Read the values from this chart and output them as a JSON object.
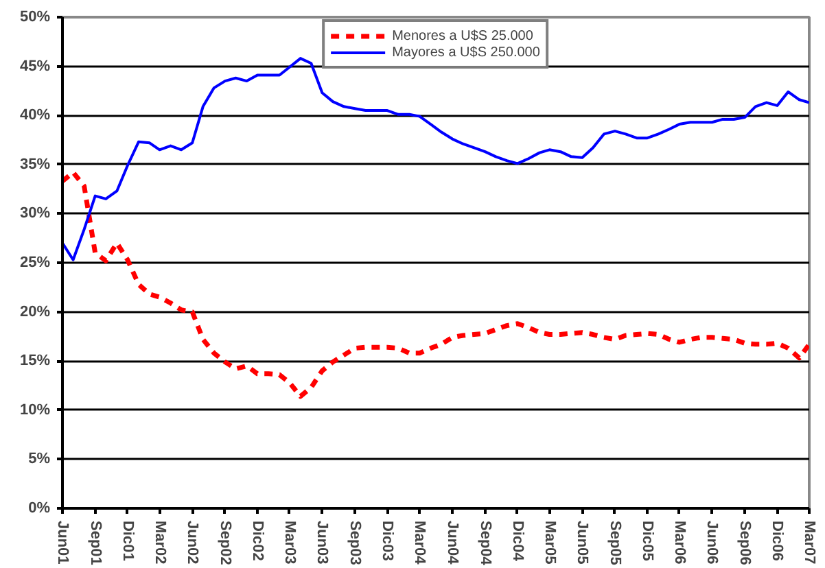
{
  "chart_data": {
    "type": "line",
    "x": [
      "2001-06",
      "2001-07",
      "2001-08",
      "2001-09",
      "2001-10",
      "2001-11",
      "2001-12",
      "2002-01",
      "2002-02",
      "2002-03",
      "2002-04",
      "2002-05",
      "2002-06",
      "2002-07",
      "2002-08",
      "2002-09",
      "2002-10",
      "2002-11",
      "2002-12",
      "2003-01",
      "2003-02",
      "2003-03",
      "2003-04",
      "2003-05",
      "2003-06",
      "2003-07",
      "2003-08",
      "2003-09",
      "2003-10",
      "2003-11",
      "2003-12",
      "2004-01",
      "2004-02",
      "2004-03",
      "2004-04",
      "2004-05",
      "2004-06",
      "2004-07",
      "2004-08",
      "2004-09",
      "2004-10",
      "2004-11",
      "2004-12",
      "2005-01",
      "2005-02",
      "2005-03",
      "2005-04",
      "2005-05",
      "2005-06",
      "2005-07",
      "2005-08",
      "2005-09",
      "2005-10",
      "2005-11",
      "2005-12",
      "2006-01",
      "2006-02",
      "2006-03",
      "2006-04",
      "2006-05",
      "2006-06",
      "2006-07",
      "2006-08",
      "2006-09",
      "2006-10",
      "2006-11",
      "2006-12",
      "2007-01",
      "2007-02",
      "2007-03"
    ],
    "series": [
      {
        "name": "Menores a U$S 25.000",
        "color": "#ff0000",
        "line_style": "dashed",
        "values": [
          33.3,
          34.2,
          32.8,
          26.0,
          25.2,
          27.0,
          25.3,
          22.8,
          21.8,
          21.5,
          20.9,
          20.2,
          20.0,
          17.2,
          15.8,
          14.9,
          14.2,
          14.5,
          13.7,
          13.7,
          13.6,
          12.8,
          11.4,
          12.3,
          14.0,
          14.9,
          15.6,
          16.3,
          16.4,
          16.4,
          16.4,
          16.3,
          15.8,
          15.8,
          16.3,
          16.7,
          17.4,
          17.6,
          17.7,
          17.8,
          18.2,
          18.6,
          18.8,
          18.4,
          17.9,
          17.7,
          17.7,
          17.8,
          17.9,
          17.7,
          17.4,
          17.2,
          17.6,
          17.7,
          17.8,
          17.7,
          17.2,
          16.9,
          17.2,
          17.4,
          17.4,
          17.3,
          17.2,
          16.8,
          16.7,
          16.7,
          16.8,
          16.3,
          15.3,
          16.7
        ]
      },
      {
        "name": "Mayores a U$S 250.000",
        "color": "#0000ff",
        "line_style": "solid",
        "values": [
          27.0,
          25.3,
          28.4,
          31.8,
          31.5,
          32.3,
          34.9,
          37.3,
          37.2,
          36.5,
          36.9,
          36.5,
          37.2,
          40.9,
          42.8,
          43.5,
          43.8,
          43.5,
          44.1,
          44.1,
          44.1,
          44.9,
          45.8,
          45.3,
          42.3,
          41.4,
          40.9,
          40.7,
          40.5,
          40.5,
          40.5,
          40.1,
          40.1,
          39.9,
          39.1,
          38.3,
          37.6,
          37.1,
          36.7,
          36.3,
          35.8,
          35.4,
          35.1,
          35.6,
          36.2,
          36.5,
          36.3,
          35.8,
          35.7,
          36.7,
          38.1,
          38.4,
          38.1,
          37.7,
          37.7,
          38.1,
          38.6,
          39.1,
          39.3,
          39.3,
          39.3,
          39.6,
          39.6,
          39.8,
          40.9,
          41.3,
          41.0,
          42.4,
          41.6,
          41.3
        ]
      }
    ],
    "xlim": [
      "2001-06",
      "2007-03"
    ],
    "xticks": [
      {
        "value": "2001-06",
        "label": "Jun01"
      },
      {
        "value": "2001-09",
        "label": "Sep01"
      },
      {
        "value": "2001-12",
        "label": "Dic01"
      },
      {
        "value": "2002-03",
        "label": "Mar02"
      },
      {
        "value": "2002-06",
        "label": "Jun02"
      },
      {
        "value": "2002-09",
        "label": "Sep02"
      },
      {
        "value": "2002-12",
        "label": "Dic02"
      },
      {
        "value": "2003-03",
        "label": "Mar03"
      },
      {
        "value": "2003-06",
        "label": "Jun03"
      },
      {
        "value": "2003-09",
        "label": "Sep03"
      },
      {
        "value": "2003-12",
        "label": "Dic03"
      },
      {
        "value": "2004-03",
        "label": "Mar04"
      },
      {
        "value": "2004-06",
        "label": "Jun04"
      },
      {
        "value": "2004-09",
        "label": "Sep04"
      },
      {
        "value": "2004-12",
        "label": "Dic04"
      },
      {
        "value": "2005-03",
        "label": "Mar05"
      },
      {
        "value": "2005-06",
        "label": "Jun05"
      },
      {
        "value": "2005-09",
        "label": "Sep05"
      },
      {
        "value": "2005-12",
        "label": "Dic05"
      },
      {
        "value": "2006-03",
        "label": "Mar06"
      },
      {
        "value": "2006-06",
        "label": "Jun06"
      },
      {
        "value": "2006-09",
        "label": "Sep06"
      },
      {
        "value": "2006-12",
        "label": "Dic06"
      },
      {
        "value": "2007-03",
        "label": "Mar07"
      }
    ],
    "ylim": [
      0,
      50
    ],
    "yticks": [
      {
        "value": 0,
        "label": "0%"
      },
      {
        "value": 5,
        "label": "5%"
      },
      {
        "value": 10,
        "label": "10%"
      },
      {
        "value": 15,
        "label": "15%"
      },
      {
        "value": 20,
        "label": "20%"
      },
      {
        "value": 25,
        "label": "25%"
      },
      {
        "value": 30,
        "label": "30%"
      },
      {
        "value": 35,
        "label": "35%"
      },
      {
        "value": 40,
        "label": "40%"
      },
      {
        "value": 45,
        "label": "45%"
      },
      {
        "value": 50,
        "label": "50%"
      }
    ],
    "grid": "y",
    "legend": "top",
    "marker": "none"
  }
}
